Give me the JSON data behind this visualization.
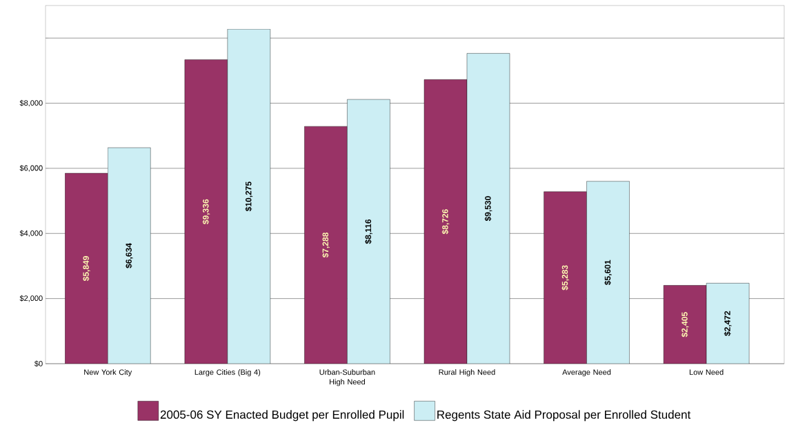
{
  "chart_data": {
    "type": "bar",
    "categories": [
      "New York City",
      "Large Cities (Big 4)",
      "Urban-Suburban High Need",
      "Rural High Need",
      "Average Need",
      "Low Need"
    ],
    "series": [
      {
        "name": "2005-06 SY Enacted Budget per Enrolled Pupil",
        "color": "#993366",
        "values": [
          5849,
          9336,
          7288,
          8726,
          5283,
          2405
        ],
        "value_labels": [
          "$5,849",
          "$9,336",
          "$7,288",
          "$8,726",
          "$5,283",
          "$2,405"
        ]
      },
      {
        "name": "Regents State Aid Proposal per Enrolled Student",
        "color": "#cceef4",
        "values": [
          6634,
          10275,
          8116,
          9530,
          5601,
          2472
        ],
        "value_labels": [
          "$6,634",
          "$10,275",
          "$8,116",
          "$9,530",
          "$5,601",
          "$2,472"
        ]
      }
    ],
    "ylim": [
      0,
      11000
    ],
    "yticks": [
      {
        "value": 0,
        "label": "$0"
      },
      {
        "value": 2000,
        "label": "$2,000"
      },
      {
        "value": 4000,
        "label": "$4,000"
      },
      {
        "value": 6000,
        "label": "$6,000"
      },
      {
        "value": 8000,
        "label": "$8,000"
      },
      {
        "value": 10000,
        "label": null
      }
    ],
    "grid": "y",
    "legend": "bottom"
  }
}
